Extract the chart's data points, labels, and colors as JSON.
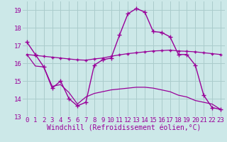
{
  "background_color": "#cce8e8",
  "grid_color": "#aacccc",
  "line_color": "#990099",
  "xlabel": "Windchill (Refroidissement éolien,°C)",
  "xlabel_fontsize": 7,
  "tick_fontsize": 6.5,
  "xlim": [
    -0.5,
    23.5
  ],
  "ylim": [
    13,
    19.5
  ],
  "yticks": [
    13,
    14,
    15,
    16,
    17,
    18,
    19
  ],
  "xticks": [
    0,
    1,
    2,
    3,
    4,
    5,
    6,
    7,
    8,
    9,
    10,
    11,
    12,
    13,
    14,
    15,
    16,
    17,
    18,
    19,
    20,
    21,
    22,
    23
  ],
  "series": [
    {
      "x": [
        0,
        1,
        2,
        3,
        4,
        5,
        6,
        7,
        8,
        9,
        10,
        11,
        12,
        13,
        14,
        15,
        16,
        17,
        18,
        19,
        20,
        21,
        22,
        23
      ],
      "y": [
        17.2,
        16.5,
        15.8,
        14.6,
        15.0,
        14.0,
        13.6,
        13.8,
        15.9,
        16.2,
        16.3,
        17.6,
        18.8,
        19.1,
        18.9,
        17.8,
        17.75,
        17.5,
        16.5,
        16.5,
        15.9,
        14.2,
        13.5,
        13.4
      ],
      "marker": "+",
      "markersize": 4,
      "linewidth": 1.0
    },
    {
      "x": [
        0,
        1,
        2,
        3,
        4,
        5,
        6,
        7,
        8,
        9,
        10,
        11,
        12,
        13,
        14,
        15,
        16,
        17,
        18,
        19,
        20,
        21,
        22,
        23
      ],
      "y": [
        16.5,
        16.45,
        16.4,
        16.35,
        16.3,
        16.25,
        16.2,
        16.18,
        16.25,
        16.3,
        16.4,
        16.48,
        16.55,
        16.6,
        16.65,
        16.7,
        16.72,
        16.75,
        16.7,
        16.68,
        16.65,
        16.6,
        16.55,
        16.5
      ],
      "marker": "+",
      "markersize": 3,
      "linewidth": 0.9
    },
    {
      "x": [
        0,
        1,
        2,
        3,
        4,
        5,
        6,
        7,
        8,
        9,
        10,
        11,
        12,
        13,
        14,
        15,
        16,
        17,
        18,
        19,
        20,
        21,
        22,
        23
      ],
      "y": [
        16.5,
        15.85,
        15.8,
        14.7,
        14.8,
        14.35,
        13.7,
        14.1,
        14.3,
        14.4,
        14.5,
        14.55,
        14.6,
        14.65,
        14.65,
        14.6,
        14.5,
        14.4,
        14.2,
        14.1,
        13.9,
        13.8,
        13.7,
        13.4
      ],
      "marker": null,
      "markersize": 0,
      "linewidth": 0.9
    }
  ]
}
